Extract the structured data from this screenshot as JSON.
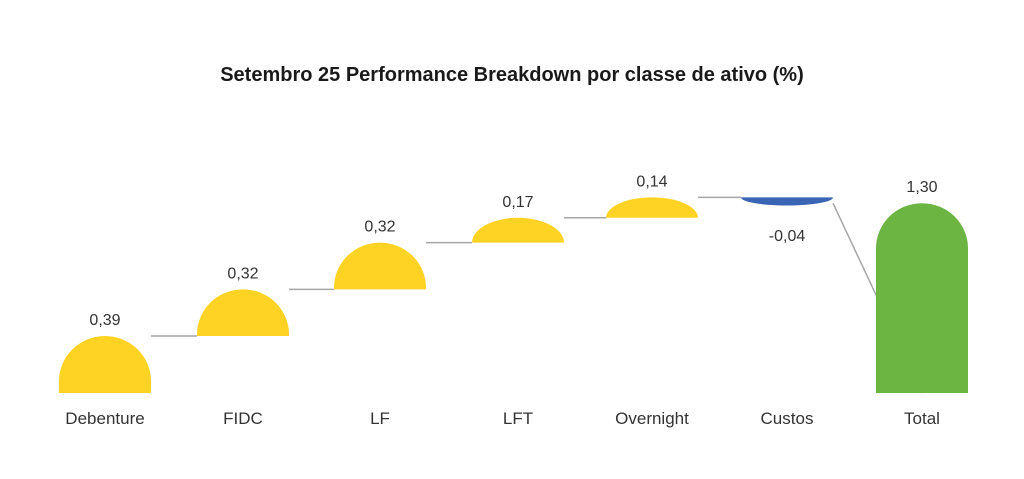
{
  "chart_data": {
    "type": "waterfall",
    "title": "Setembro 25 Performance Breakdown por classe de ativo (%)",
    "categories": [
      "Debenture",
      "FIDC",
      "LF",
      "LFT",
      "Overnight",
      "Custos",
      "Total"
    ],
    "values": [
      0.39,
      0.32,
      0.32,
      0.17,
      0.14,
      -0.04,
      1.3
    ],
    "labels": [
      "0,39",
      "0,32",
      "0,32",
      "0,17",
      "0,14",
      "-0,04",
      "1,30"
    ],
    "is_total": [
      false,
      false,
      false,
      false,
      false,
      false,
      true
    ],
    "colors": {
      "increase": "#FFD324",
      "decrease": "#3A64B4",
      "total": "#6CB543",
      "connector": "#A6A6A6"
    },
    "ylim": [
      0,
      1.34
    ],
    "grid": false
  }
}
